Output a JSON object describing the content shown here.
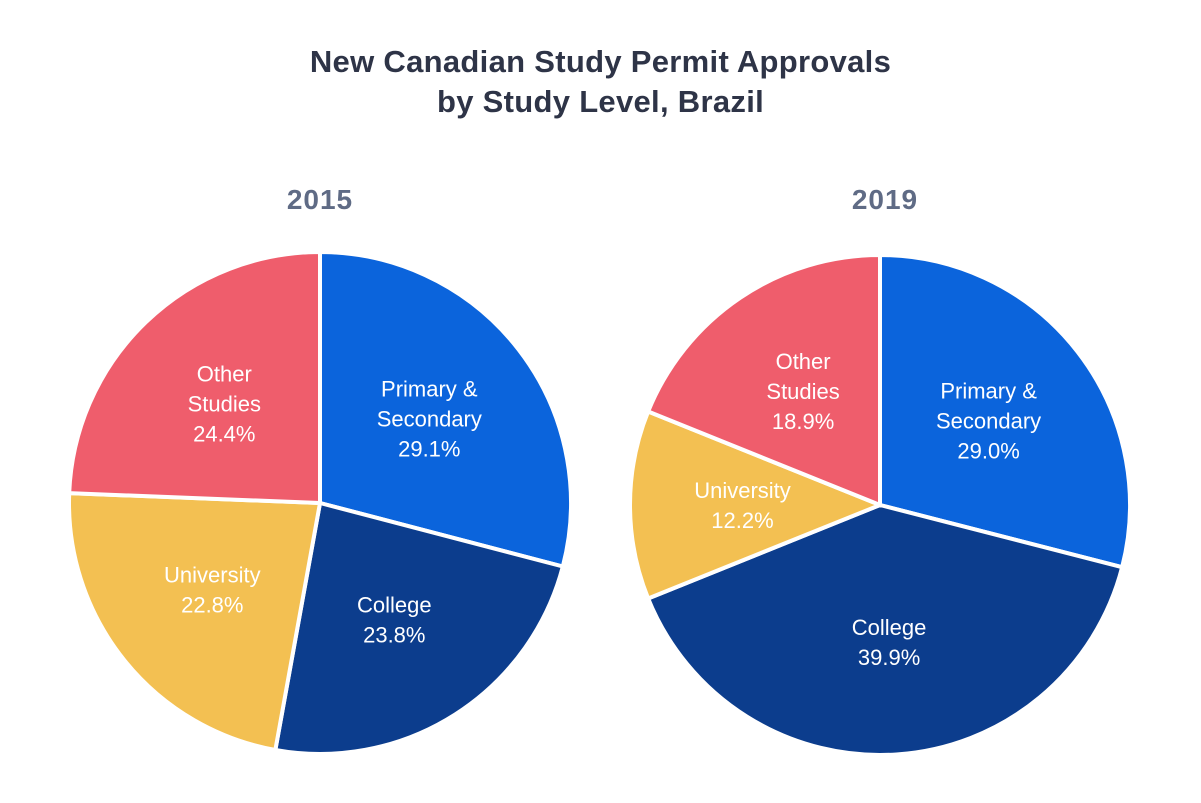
{
  "header": {
    "title_line1": "New Canadian Study Permit Approvals",
    "title_line2": "by Study Level, Brazil"
  },
  "colors": {
    "primary_secondary": "#0b64dc",
    "college": "#0c3d8d",
    "university": "#f3c052",
    "other_studies": "#ef5d6c",
    "title_text": "#2e3447",
    "year_text": "#5f6b85",
    "slice_label_text": "#ffffff",
    "background": "#ffffff"
  },
  "chart_data": [
    {
      "type": "pie",
      "title": "2015",
      "start_angle_deg": 0,
      "direction": "clockwise",
      "slices": [
        {
          "label": "Primary & Secondary",
          "label_lines": [
            "Primary &",
            "Secondary"
          ],
          "value": 29.1,
          "pct_text": "29.1%",
          "color": "#0b64dc"
        },
        {
          "label": "College",
          "label_lines": [
            "College"
          ],
          "value": 23.8,
          "pct_text": "23.8%",
          "color": "#0c3d8d"
        },
        {
          "label": "University",
          "label_lines": [
            "University"
          ],
          "value": 22.8,
          "pct_text": "22.8%",
          "color": "#f3c052"
        },
        {
          "label": "Other Studies",
          "label_lines": [
            "Other",
            "Studies"
          ],
          "value": 24.4,
          "pct_text": "24.4%",
          "color": "#ef5d6c"
        }
      ]
    },
    {
      "type": "pie",
      "title": "2019",
      "start_angle_deg": 0,
      "direction": "clockwise",
      "slices": [
        {
          "label": "Primary & Secondary",
          "label_lines": [
            "Primary &",
            "Secondary"
          ],
          "value": 29.0,
          "pct_text": "29.0%",
          "color": "#0b64dc"
        },
        {
          "label": "College",
          "label_lines": [
            "College"
          ],
          "value": 39.9,
          "pct_text": "39.9%",
          "color": "#0c3d8d"
        },
        {
          "label": "University",
          "label_lines": [
            "University"
          ],
          "value": 12.2,
          "pct_text": "12.2%",
          "color": "#f3c052"
        },
        {
          "label": "Other Studies",
          "label_lines": [
            "Other",
            "Studies"
          ],
          "value": 18.9,
          "pct_text": "18.9%",
          "color": "#ef5d6c"
        }
      ]
    }
  ]
}
